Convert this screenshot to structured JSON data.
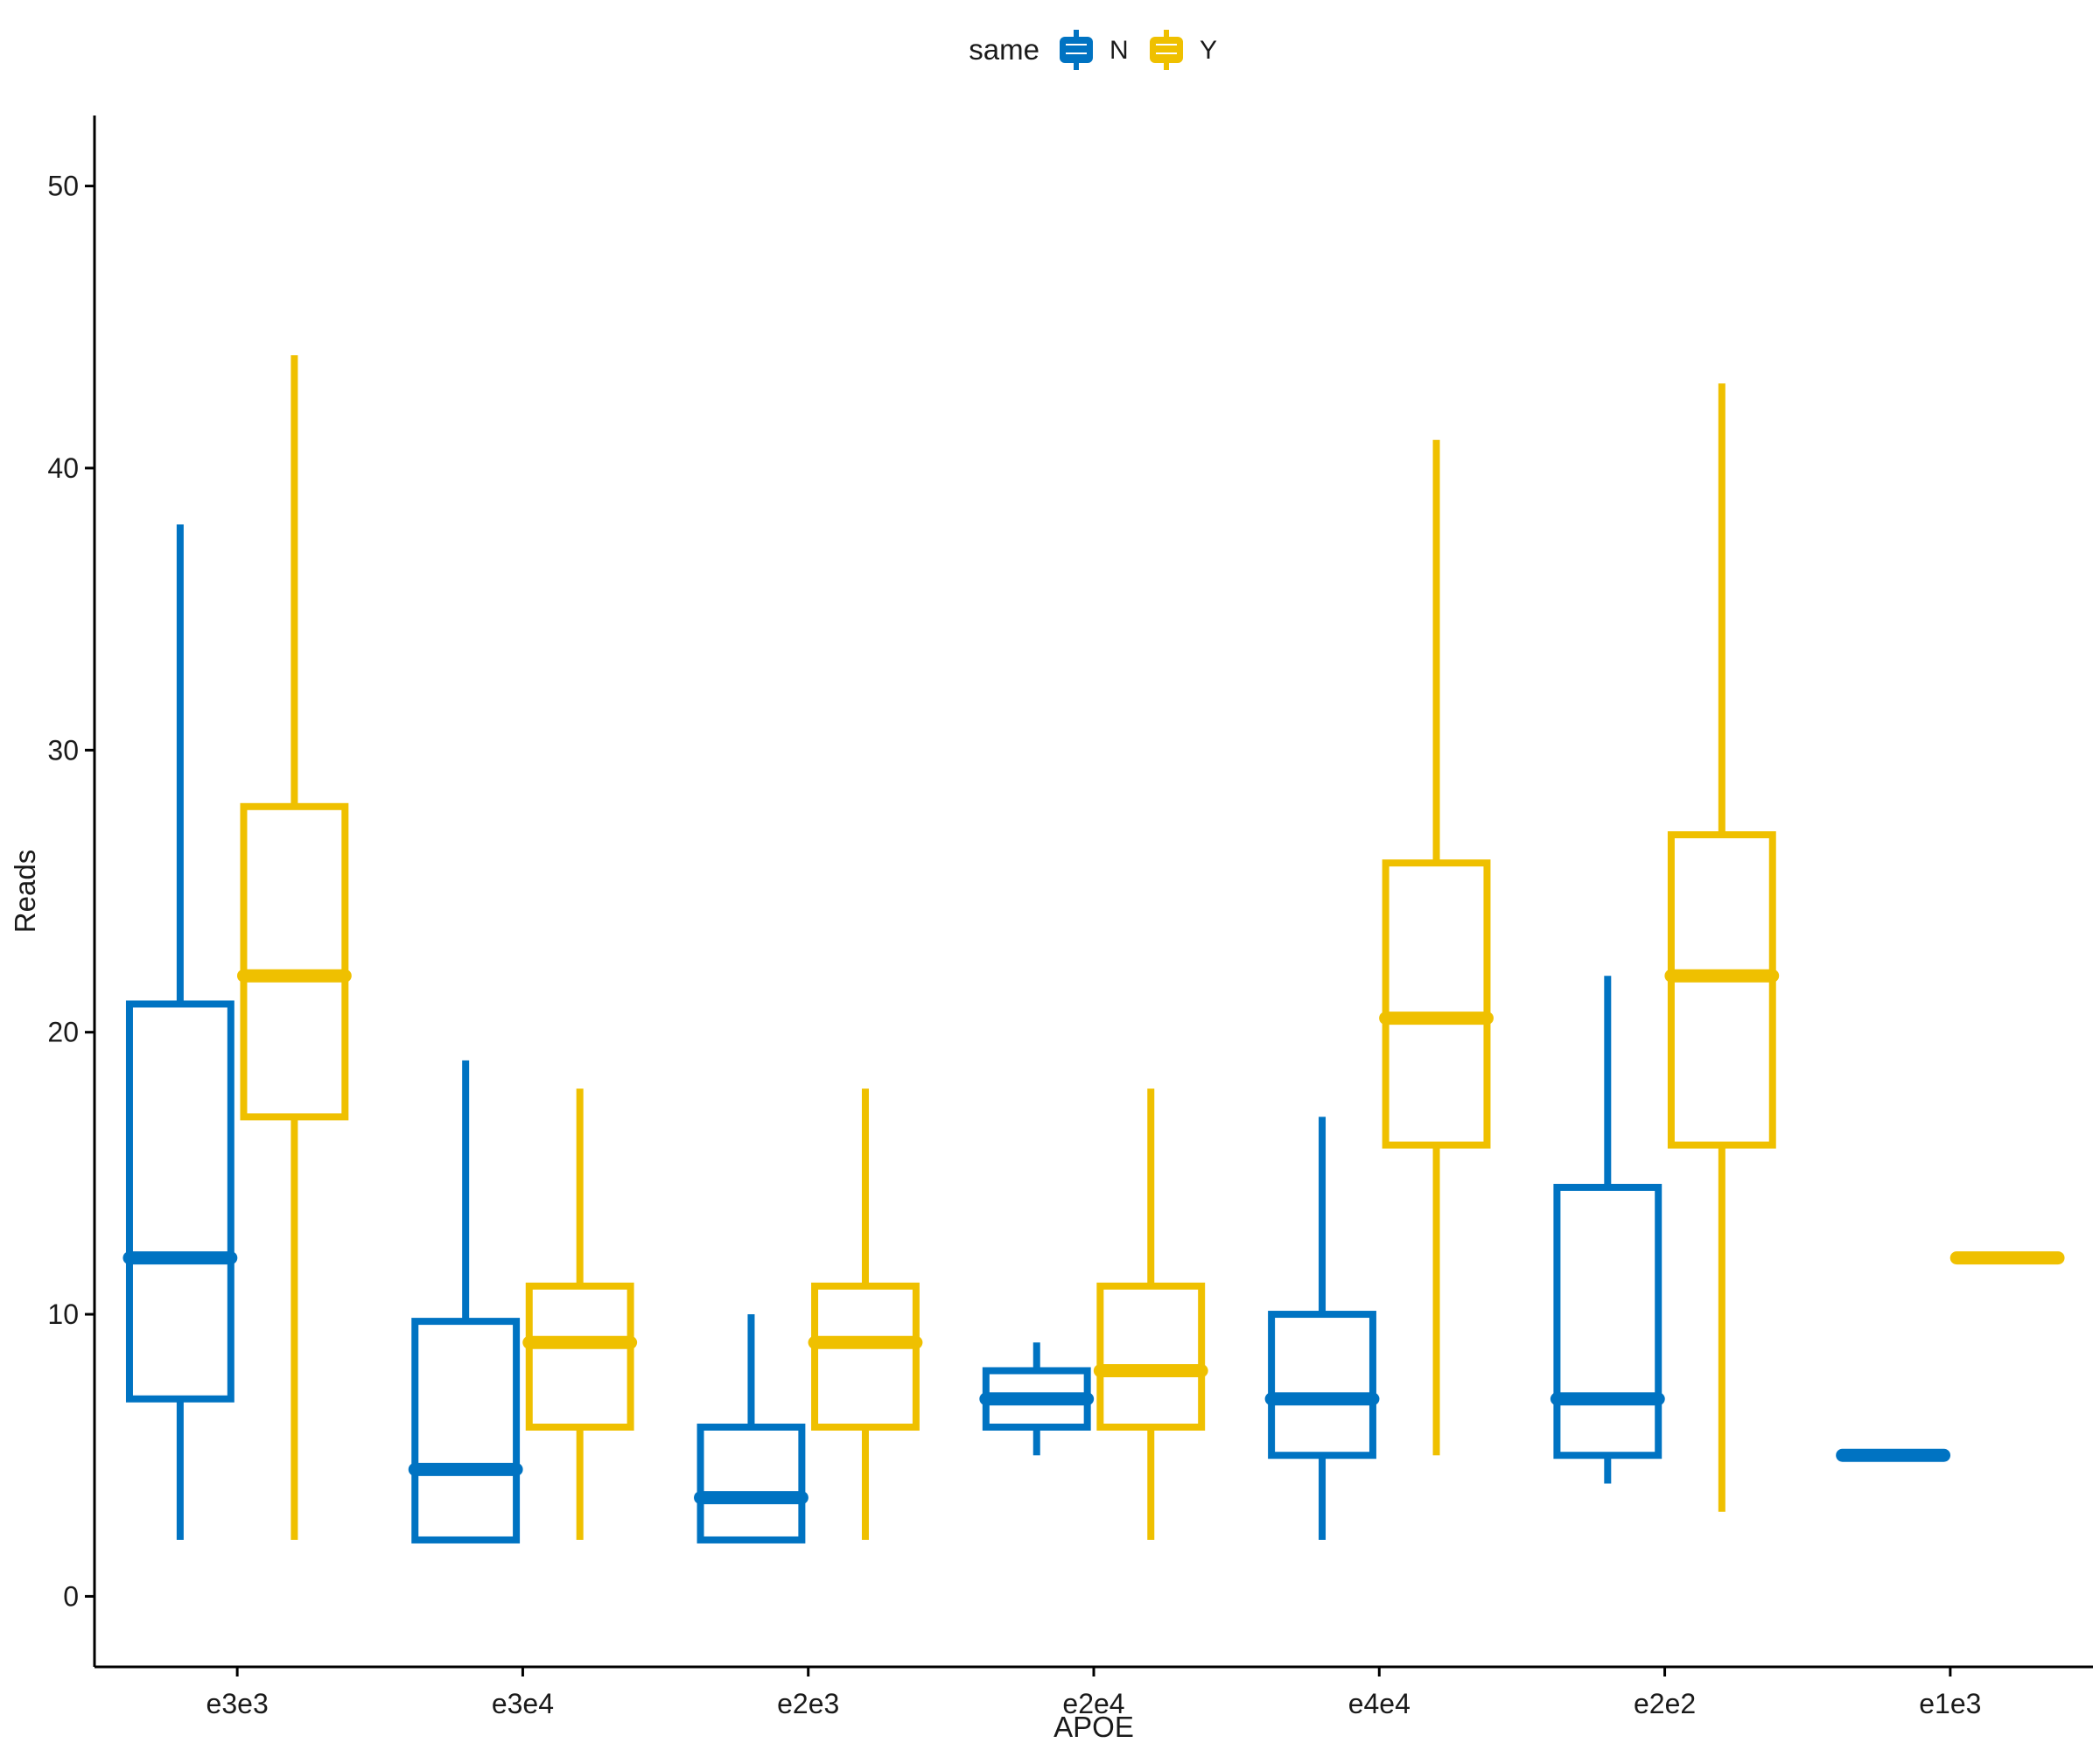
{
  "chart_data": {
    "type": "boxplot",
    "title": "",
    "xlabel": "APOE",
    "ylabel": "Reads",
    "ylim": [
      -2.5,
      52.5
    ],
    "yticks": [
      0,
      10,
      20,
      30,
      40,
      50
    ],
    "categories": [
      "e3e3",
      "e3e4",
      "e2e3",
      "e2e4",
      "e4e4",
      "e2e2",
      "e1e3"
    ],
    "legend": {
      "title": "same",
      "position": "top-center"
    },
    "series": [
      {
        "name": "N",
        "color": "#0073C2",
        "boxes": [
          {
            "category": "e3e3",
            "lower_whisker": 2,
            "q1": 7,
            "median": 12,
            "q3": 21,
            "upper_whisker": 38
          },
          {
            "category": "e3e4",
            "lower_whisker": 2,
            "q1": 2,
            "median": 4.5,
            "q3": 9.75,
            "upper_whisker": 19
          },
          {
            "category": "e2e3",
            "lower_whisker": 2,
            "q1": 2,
            "median": 3.5,
            "q3": 6,
            "upper_whisker": 10
          },
          {
            "category": "e2e4",
            "lower_whisker": 5,
            "q1": 6,
            "median": 7,
            "q3": 8,
            "upper_whisker": 9
          },
          {
            "category": "e4e4",
            "lower_whisker": 2,
            "q1": 5,
            "median": 7,
            "q3": 10,
            "upper_whisker": 17
          },
          {
            "category": "e2e2",
            "lower_whisker": 4,
            "q1": 5,
            "median": 7,
            "q3": 14.5,
            "upper_whisker": 22
          },
          {
            "category": "e1e3",
            "lower_whisker": 5,
            "q1": 5,
            "median": 5,
            "q3": 5,
            "upper_whisker": 5
          }
        ]
      },
      {
        "name": "Y",
        "color": "#EFC000",
        "boxes": [
          {
            "category": "e3e3",
            "lower_whisker": 2,
            "q1": 17,
            "median": 22,
            "q3": 28,
            "upper_whisker": 44
          },
          {
            "category": "e3e4",
            "lower_whisker": 2,
            "q1": 6,
            "median": 9,
            "q3": 11,
            "upper_whisker": 18
          },
          {
            "category": "e2e3",
            "lower_whisker": 2,
            "q1": 6,
            "median": 9,
            "q3": 11,
            "upper_whisker": 18
          },
          {
            "category": "e2e4",
            "lower_whisker": 2,
            "q1": 6,
            "median": 8,
            "q3": 11,
            "upper_whisker": 18
          },
          {
            "category": "e4e4",
            "lower_whisker": 5,
            "q1": 16,
            "median": 20.5,
            "q3": 26,
            "upper_whisker": 41
          },
          {
            "category": "e2e2",
            "lower_whisker": 3,
            "q1": 16,
            "median": 22,
            "q3": 27,
            "upper_whisker": 43
          },
          {
            "category": "e1e3",
            "lower_whisker": 12,
            "q1": 12,
            "median": 12,
            "q3": 12,
            "upper_whisker": 12
          }
        ]
      }
    ]
  }
}
